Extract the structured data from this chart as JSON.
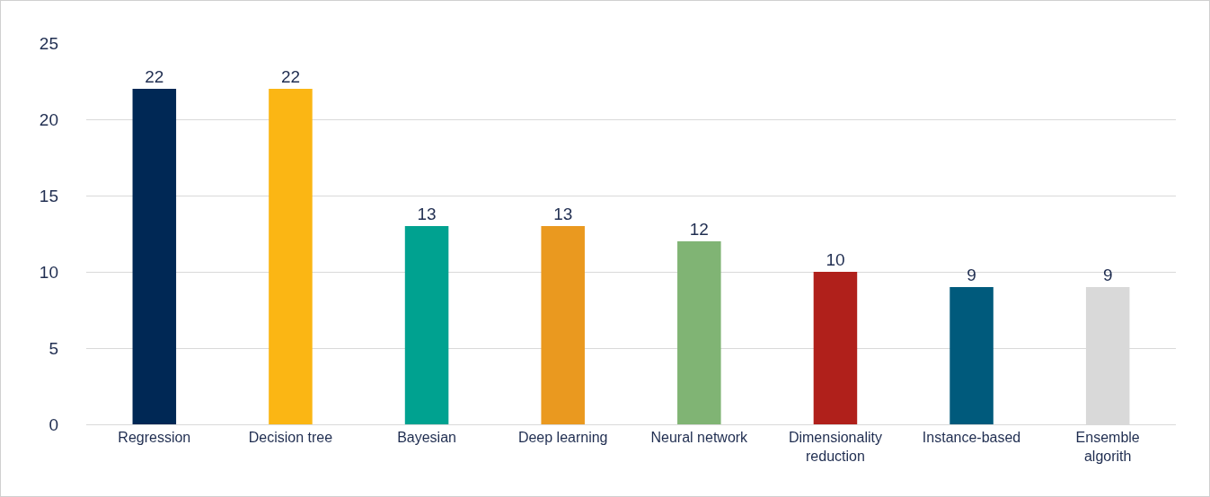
{
  "chart_data": {
    "type": "bar",
    "categories": [
      "Regression",
      "Decision tree",
      "Bayesian",
      "Deep learning",
      "Neural network",
      "Dimensionality reduction",
      "Instance-based",
      "Ensemble algorith"
    ],
    "values": [
      22,
      22,
      13,
      13,
      12,
      10,
      9,
      9
    ],
    "colors": [
      "#002855",
      "#fbb614",
      "#00a290",
      "#ea991f",
      "#80b474",
      "#b0201b",
      "#005a7c",
      "#d9d9d9"
    ],
    "ylim": [
      0,
      25
    ],
    "yticks": [
      0,
      5,
      10,
      15,
      20,
      25
    ],
    "grid": "y",
    "legend": false,
    "data_labels": true
  }
}
